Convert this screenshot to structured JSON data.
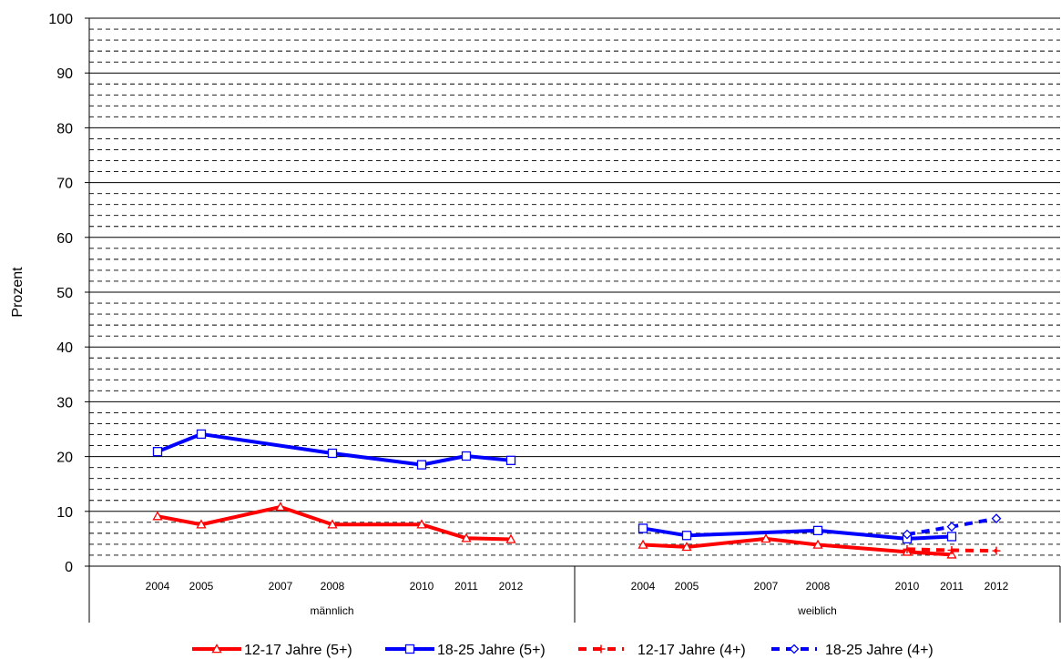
{
  "chart_data": {
    "type": "line",
    "xlabel": "",
    "ylabel": "Prozent",
    "ylim": [
      0,
      100
    ],
    "y_ticks": [
      "0",
      "10",
      "20",
      "30",
      "40",
      "50",
      "60",
      "70",
      "80",
      "90",
      "100"
    ],
    "major_grid_step": 10,
    "minor_grid_step": 2,
    "groups": [
      {
        "label": "männlich",
        "years": [
          "2004",
          "2005",
          "2007",
          "2008",
          "2010",
          "2011",
          "2012"
        ]
      },
      {
        "label": "weiblich",
        "years": [
          "2004",
          "2005",
          "2007",
          "2008",
          "2010",
          "2011",
          "2012"
        ]
      }
    ],
    "legend_position": "bottom",
    "series": [
      {
        "name": "12-17 Jahre (5+)",
        "color": "#ff0000",
        "dash": "solid",
        "marker": "triangle",
        "values": [
          [
            9.1,
            7.6,
            10.8,
            7.6,
            7.6,
            5.1,
            4.9
          ],
          [
            3.9,
            3.5,
            5.0,
            3.9,
            2.6,
            2.1,
            null
          ]
        ]
      },
      {
        "name": "18-25 Jahre (5+)",
        "color": "#0000ff",
        "dash": "solid",
        "marker": "square",
        "values": [
          [
            20.9,
            24.1,
            null,
            20.6,
            18.5,
            20.1,
            19.3
          ],
          [
            6.9,
            5.6,
            null,
            6.5,
            5.0,
            5.4,
            null
          ]
        ]
      },
      {
        "name": "12-17 Jahre (4+)",
        "color": "#ff0000",
        "dash": "dashed",
        "marker": "plus",
        "values": [
          [
            null,
            null,
            null,
            null,
            null,
            null,
            null
          ],
          [
            null,
            null,
            null,
            null,
            3.1,
            2.9,
            2.8
          ]
        ]
      },
      {
        "name": "18-25 Jahre (4+)",
        "color": "#0000ff",
        "dash": "dashed",
        "marker": "diamond",
        "values": [
          [
            null,
            null,
            null,
            null,
            null,
            null,
            null
          ],
          [
            null,
            null,
            null,
            null,
            5.8,
            7.2,
            8.7
          ]
        ]
      }
    ]
  }
}
